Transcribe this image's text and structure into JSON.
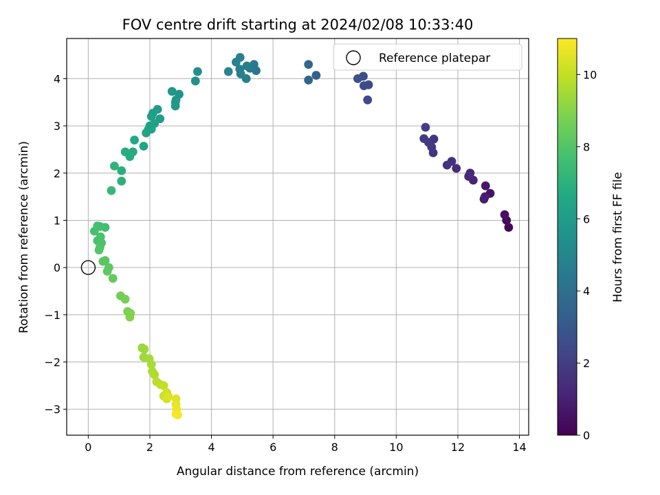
{
  "chart_data": {
    "type": "scatter",
    "title": "FOV centre drift starting at 2024/02/08 10:33:40",
    "xlabel": "Angular distance from reference (arcmin)",
    "ylabel": "Rotation from reference (arcmin)",
    "xlim": [
      -0.7,
      14.3
    ],
    "ylim": [
      -3.55,
      4.85
    ],
    "xticks": [
      0,
      2,
      4,
      6,
      8,
      10,
      12,
      14
    ],
    "yticks": [
      -3,
      -2,
      -1,
      0,
      1,
      2,
      3,
      4
    ],
    "grid": true,
    "legend": {
      "placement": "top-right",
      "entries": [
        "Reference platepar"
      ]
    },
    "colorbar": {
      "label": "Hours from first FF file",
      "range": [
        0,
        11
      ],
      "ticks": [
        0,
        2,
        4,
        6,
        8,
        10
      ],
      "colormap": "viridis"
    },
    "reference_point": {
      "name": "Reference platepar",
      "x": 0,
      "y": 0
    },
    "series": [
      {
        "points": [
          {
            "x": 13.65,
            "y": 0.85,
            "t": 0.15
          },
          {
            "x": 13.58,
            "y": 1.0,
            "t": 0.3
          },
          {
            "x": 13.52,
            "y": 1.12,
            "t": 0.45
          },
          {
            "x": 13.05,
            "y": 1.57,
            "t": 0.6
          },
          {
            "x": 12.9,
            "y": 1.73,
            "t": 0.75
          },
          {
            "x": 12.88,
            "y": 1.5,
            "t": 0.85
          },
          {
            "x": 12.85,
            "y": 1.45,
            "t": 0.95
          },
          {
            "x": 12.5,
            "y": 1.85,
            "t": 1.1
          },
          {
            "x": 12.4,
            "y": 2.0,
            "t": 1.2
          },
          {
            "x": 12.35,
            "y": 1.93,
            "t": 1.3
          },
          {
            "x": 11.95,
            "y": 2.1,
            "t": 1.4
          },
          {
            "x": 11.8,
            "y": 2.25,
            "t": 1.5
          },
          {
            "x": 11.65,
            "y": 2.17,
            "t": 1.6
          },
          {
            "x": 11.2,
            "y": 2.43,
            "t": 1.7
          },
          {
            "x": 11.22,
            "y": 2.72,
            "t": 1.75
          },
          {
            "x": 11.15,
            "y": 2.55,
            "t": 1.8
          },
          {
            "x": 11.05,
            "y": 2.65,
            "t": 1.85
          },
          {
            "x": 10.9,
            "y": 2.73,
            "t": 1.9
          },
          {
            "x": 10.95,
            "y": 2.97,
            "t": 1.95
          },
          {
            "x": 9.07,
            "y": 3.55,
            "t": 2.3
          },
          {
            "x": 9.1,
            "y": 3.87,
            "t": 2.4
          },
          {
            "x": 8.95,
            "y": 3.85,
            "t": 2.5
          },
          {
            "x": 8.93,
            "y": 4.05,
            "t": 2.6
          },
          {
            "x": 8.75,
            "y": 4.0,
            "t": 2.7
          },
          {
            "x": 7.4,
            "y": 4.07,
            "t": 3.4
          },
          {
            "x": 7.15,
            "y": 3.97,
            "t": 3.5
          },
          {
            "x": 7.15,
            "y": 4.3,
            "t": 3.6
          },
          {
            "x": 5.45,
            "y": 4.17,
            "t": 4.3
          },
          {
            "x": 5.38,
            "y": 4.3,
            "t": 4.4
          },
          {
            "x": 5.25,
            "y": 4.22,
            "t": 4.5
          },
          {
            "x": 5.15,
            "y": 4.27,
            "t": 4.6
          },
          {
            "x": 5.13,
            "y": 4.0,
            "t": 4.65
          },
          {
            "x": 4.95,
            "y": 4.1,
            "t": 4.7
          },
          {
            "x": 4.92,
            "y": 4.2,
            "t": 4.75
          },
          {
            "x": 4.93,
            "y": 4.45,
            "t": 4.8
          },
          {
            "x": 4.8,
            "y": 4.35,
            "t": 4.85
          },
          {
            "x": 4.55,
            "y": 4.15,
            "t": 4.95
          },
          {
            "x": 3.55,
            "y": 4.15,
            "t": 5.4
          },
          {
            "x": 3.48,
            "y": 3.95,
            "t": 5.5
          },
          {
            "x": 2.95,
            "y": 3.67,
            "t": 5.6
          },
          {
            "x": 2.85,
            "y": 3.55,
            "t": 5.7
          },
          {
            "x": 2.72,
            "y": 3.73,
            "t": 5.75
          },
          {
            "x": 2.83,
            "y": 3.5,
            "t": 5.8
          },
          {
            "x": 2.83,
            "y": 3.42,
            "t": 5.9
          },
          {
            "x": 2.25,
            "y": 3.35,
            "t": 6.0
          },
          {
            "x": 2.33,
            "y": 3.15,
            "t": 6.05
          },
          {
            "x": 2.1,
            "y": 3.27,
            "t": 6.1
          },
          {
            "x": 2.05,
            "y": 3.2,
            "t": 6.15
          },
          {
            "x": 2.15,
            "y": 3.05,
            "t": 6.2
          },
          {
            "x": 2.0,
            "y": 3.0,
            "t": 6.25
          },
          {
            "x": 1.95,
            "y": 2.92,
            "t": 6.3
          },
          {
            "x": 2.05,
            "y": 2.93,
            "t": 6.35
          },
          {
            "x": 1.88,
            "y": 2.85,
            "t": 6.4
          },
          {
            "x": 1.8,
            "y": 2.57,
            "t": 6.5
          },
          {
            "x": 1.5,
            "y": 2.7,
            "t": 6.6
          },
          {
            "x": 1.45,
            "y": 2.45,
            "t": 6.7
          },
          {
            "x": 1.35,
            "y": 2.35,
            "t": 6.75
          },
          {
            "x": 1.2,
            "y": 2.45,
            "t": 6.8
          },
          {
            "x": 1.08,
            "y": 2.05,
            "t": 6.9
          },
          {
            "x": 1.08,
            "y": 1.83,
            "t": 7.0
          },
          {
            "x": 0.85,
            "y": 2.15,
            "t": 7.1
          },
          {
            "x": 0.75,
            "y": 1.63,
            "t": 7.3
          },
          {
            "x": 0.55,
            "y": 0.85,
            "t": 7.6
          },
          {
            "x": 0.38,
            "y": 0.87,
            "t": 7.65
          },
          {
            "x": 0.3,
            "y": 0.88,
            "t": 7.7
          },
          {
            "x": 0.2,
            "y": 0.77,
            "t": 7.75
          },
          {
            "x": 0.4,
            "y": 0.65,
            "t": 7.8
          },
          {
            "x": 0.3,
            "y": 0.57,
            "t": 7.85
          },
          {
            "x": 0.43,
            "y": 0.52,
            "t": 7.9
          },
          {
            "x": 0.38,
            "y": 0.43,
            "t": 7.95
          },
          {
            "x": 0.35,
            "y": 0.37,
            "t": 8.0
          },
          {
            "x": 0.55,
            "y": 0.15,
            "t": 8.1
          },
          {
            "x": 0.48,
            "y": 0.13,
            "t": 8.15
          },
          {
            "x": 0.67,
            "y": 0.0,
            "t": 8.2
          },
          {
            "x": 0.62,
            "y": -0.08,
            "t": 8.25
          },
          {
            "x": 0.8,
            "y": -0.23,
            "t": 8.35
          },
          {
            "x": 1.05,
            "y": -0.6,
            "t": 8.6
          },
          {
            "x": 1.2,
            "y": -0.67,
            "t": 8.7
          },
          {
            "x": 1.28,
            "y": -0.93,
            "t": 8.8
          },
          {
            "x": 1.37,
            "y": -0.97,
            "t": 8.85
          },
          {
            "x": 1.35,
            "y": -1.05,
            "t": 8.9
          },
          {
            "x": 1.75,
            "y": -1.7,
            "t": 9.3
          },
          {
            "x": 1.82,
            "y": -1.73,
            "t": 9.35
          },
          {
            "x": 1.8,
            "y": -1.9,
            "t": 9.4
          },
          {
            "x": 1.98,
            "y": -1.93,
            "t": 9.5
          },
          {
            "x": 2.05,
            "y": -2.05,
            "t": 9.55
          },
          {
            "x": 2.08,
            "y": -2.2,
            "t": 9.6
          },
          {
            "x": 2.15,
            "y": -2.27,
            "t": 9.7
          },
          {
            "x": 2.22,
            "y": -2.42,
            "t": 9.8
          },
          {
            "x": 2.35,
            "y": -2.48,
            "t": 9.9
          },
          {
            "x": 2.45,
            "y": -2.5,
            "t": 10.0
          },
          {
            "x": 2.45,
            "y": -2.72,
            "t": 10.1
          },
          {
            "x": 2.55,
            "y": -2.65,
            "t": 10.2
          },
          {
            "x": 2.55,
            "y": -2.78,
            "t": 10.3
          },
          {
            "x": 2.6,
            "y": -2.73,
            "t": 10.4
          },
          {
            "x": 2.85,
            "y": -2.78,
            "t": 10.5
          },
          {
            "x": 2.85,
            "y": -2.9,
            "t": 10.6
          },
          {
            "x": 2.87,
            "y": -3.0,
            "t": 10.7
          },
          {
            "x": 2.85,
            "y": -3.1,
            "t": 10.8
          },
          {
            "x": 2.9,
            "y": -3.12,
            "t": 10.9
          }
        ]
      }
    ]
  }
}
